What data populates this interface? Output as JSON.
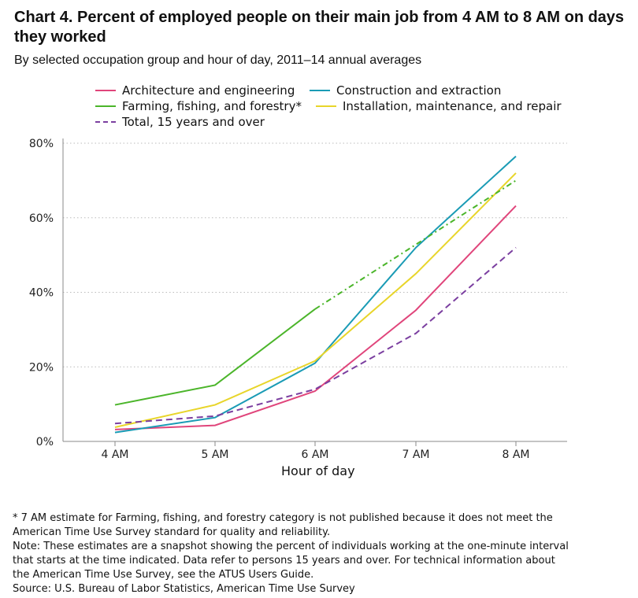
{
  "header": {
    "title": "Chart 4. Percent of employed people on their main job from 4 AM to 8 AM on days they worked",
    "subtitle": "By selected occupation group and hour of day, 2011–14 annual averages"
  },
  "legend": [
    {
      "label": "Architecture and engineering",
      "color": "#e0457b"
    },
    {
      "label": "Construction and extraction",
      "color": "#1a9bb5"
    },
    {
      "label": "Farming, fishing, and forestry*",
      "color": "#4bb52a"
    },
    {
      "label": "Installation, maintenance, and repair",
      "color": "#e8d52a"
    },
    {
      "label": "Total, 15 years and over",
      "color": "#7b3fa0"
    }
  ],
  "chart_data": {
    "type": "line",
    "xlabel": "Hour of day",
    "ylabel": "",
    "categories": [
      "4 AM",
      "5 AM",
      "6 AM",
      "7 AM",
      "8 AM"
    ],
    "ylim": [
      0,
      80
    ],
    "yticks": [
      "0%",
      "20%",
      "40%",
      "60%",
      "80%"
    ],
    "grid": "horizontal dotted",
    "legend_position": "top",
    "series": [
      {
        "name": "Architecture and engineering",
        "color": "#e0457b",
        "style": "solid",
        "values": [
          3.2,
          4.3,
          13.5,
          35.2,
          63.2
        ]
      },
      {
        "name": "Construction and extraction",
        "color": "#1a9bb5",
        "style": "solid",
        "values": [
          2.4,
          6.4,
          21.0,
          52.0,
          76.5
        ]
      },
      {
        "name": "Farming, fishing, and forestry*",
        "color": "#4bb52a",
        "style": "solid",
        "values": [
          9.8,
          15.1,
          35.5,
          null,
          70.0
        ],
        "interpolated_segment_style": "dash-dot"
      },
      {
        "name": "Installation, maintenance, and repair",
        "color": "#e8d52a",
        "style": "solid",
        "values": [
          3.8,
          9.8,
          21.6,
          45.0,
          72.0
        ]
      },
      {
        "name": "Total, 15 years and over",
        "color": "#7b3fa0",
        "style": "dashed",
        "values": [
          4.8,
          6.8,
          14.0,
          29.0,
          52.0
        ]
      }
    ]
  },
  "notes": [
    "* 7 AM estimate for Farming, fishing, and forestry category is not published because it does not meet the",
    " American Time Use Survey standard for quality and reliability.",
    "Note: These estimates are a snapshot showing the percent of individuals working at the one-minute interval",
    " that starts at the time indicated. Data refer to persons 15 years and over. For technical information about",
    " the American Time Use Survey, see the ATUS Users Guide.",
    "Source: U.S. Bureau of Labor Statistics, American Time Use Survey"
  ]
}
